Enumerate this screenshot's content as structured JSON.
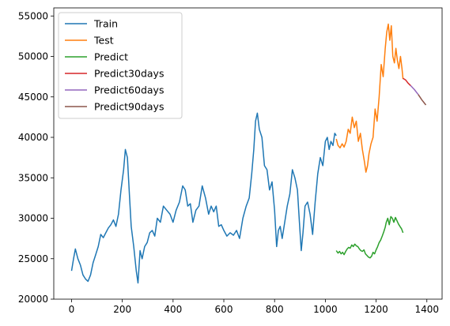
{
  "chart_data": {
    "type": "line",
    "title": "",
    "xlabel": "",
    "ylabel": "",
    "xlim": [
      -70,
      1460
    ],
    "ylim": [
      20000,
      56000
    ],
    "x_ticks": [
      0,
      200,
      400,
      600,
      800,
      1000,
      1200,
      1400
    ],
    "y_ticks": [
      20000,
      25000,
      30000,
      35000,
      40000,
      45000,
      50000,
      55000
    ],
    "grid": false,
    "legend_position": "top-left",
    "series": [
      {
        "name": "Train",
        "color": "#1f77b4",
        "x": [
          0,
          8,
          15,
          25,
          35,
          45,
          55,
          65,
          75,
          85,
          95,
          105,
          115,
          125,
          135,
          145,
          155,
          165,
          175,
          185,
          195,
          205,
          212,
          220,
          228,
          235,
          245,
          255,
          262,
          270,
          278,
          288,
          298,
          308,
          318,
          328,
          338,
          350,
          362,
          375,
          388,
          400,
          412,
          425,
          438,
          448,
          458,
          468,
          478,
          490,
          502,
          515,
          528,
          540,
          550,
          560,
          570,
          580,
          590,
          600,
          612,
          625,
          638,
          650,
          662,
          675,
          688,
          700,
          710,
          718,
          725,
          732,
          740,
          750,
          760,
          770,
          780,
          790,
          800,
          808,
          815,
          822,
          830,
          840,
          850,
          860,
          870,
          880,
          890,
          898,
          905,
          912,
          920,
          930,
          940,
          950,
          960,
          970,
          980,
          990,
          1000,
          1008,
          1015,
          1022,
          1030,
          1037,
          1043
        ],
        "y": [
          23500,
          25000,
          26200,
          25000,
          24200,
          23000,
          22500,
          22200,
          23000,
          24500,
          25500,
          26500,
          28000,
          27600,
          28200,
          28800,
          29200,
          29800,
          29000,
          30500,
          33500,
          36000,
          38500,
          37500,
          33000,
          29000,
          26500,
          23500,
          22000,
          26000,
          25000,
          26500,
          27000,
          28200,
          28500,
          27800,
          30000,
          29500,
          31500,
          31000,
          30500,
          29500,
          31000,
          32000,
          34000,
          33500,
          31500,
          31800,
          29500,
          31000,
          31500,
          34000,
          32500,
          30500,
          31500,
          30800,
          31500,
          29000,
          29200,
          28500,
          27800,
          28200,
          27900,
          28500,
          27500,
          30000,
          31500,
          32500,
          35500,
          38500,
          42000,
          43000,
          41000,
          40000,
          36500,
          36000,
          33500,
          34500,
          31000,
          26500,
          28500,
          29000,
          27500,
          29500,
          31500,
          33000,
          36000,
          35000,
          33500,
          29500,
          26000,
          28200,
          31500,
          32000,
          30500,
          28000,
          32000,
          35500,
          37500,
          36500,
          39500,
          40000,
          38500,
          39500,
          39000,
          40500,
          40200
        ]
      },
      {
        "name": "Test",
        "color": "#ff7f0e",
        "x": [
          1043,
          1050,
          1058,
          1066,
          1074,
          1082,
          1090,
          1098,
          1106,
          1114,
          1122,
          1130,
          1138,
          1146,
          1154,
          1160,
          1166,
          1172,
          1180,
          1188,
          1196,
          1204,
          1212,
          1220,
          1228,
          1236,
          1242,
          1248,
          1254,
          1260,
          1266,
          1272,
          1278,
          1284,
          1290,
          1296,
          1302,
          1306
        ],
        "y": [
          39800,
          39000,
          38700,
          39200,
          38800,
          39500,
          41000,
          40500,
          42500,
          41200,
          42000,
          39500,
          40500,
          38500,
          37000,
          35700,
          36500,
          38000,
          39200,
          40000,
          43500,
          42000,
          45000,
          49000,
          47500,
          51000,
          53000,
          54000,
          52000,
          53800,
          50000,
          49200,
          51000,
          49500,
          48500,
          50000,
          48500,
          47200
        ]
      },
      {
        "name": "Predict",
        "color": "#2ca02c",
        "x": [
          1043,
          1050,
          1056,
          1062,
          1068,
          1074,
          1080,
          1086,
          1092,
          1098,
          1104,
          1110,
          1116,
          1122,
          1128,
          1134,
          1140,
          1146,
          1152,
          1158,
          1164,
          1170,
          1176,
          1182,
          1188,
          1194,
          1200,
          1206,
          1212,
          1218,
          1224,
          1230,
          1236,
          1240,
          1246,
          1252,
          1258,
          1264,
          1270,
          1276,
          1282,
          1288,
          1294,
          1300,
          1306
        ],
        "y": [
          26000,
          25700,
          25900,
          25600,
          25800,
          25500,
          25900,
          26200,
          26400,
          26300,
          26700,
          26500,
          26800,
          26600,
          26500,
          26200,
          26000,
          25900,
          26100,
          25600,
          25400,
          25200,
          25100,
          25300,
          25800,
          25600,
          26100,
          26500,
          27000,
          27300,
          27800,
          28300,
          28900,
          29500,
          30000,
          29200,
          30200,
          30000,
          29500,
          30100,
          29700,
          29300,
          29000,
          28700,
          28200
        ]
      },
      {
        "name": "Predict30days",
        "color": "#d62728",
        "x": [
          1306,
          1316,
          1326,
          1336
        ],
        "y": [
          47300,
          47100,
          46700,
          46400
        ]
      },
      {
        "name": "Predict60days",
        "color": "#9467bd",
        "x": [
          1336,
          1351,
          1366
        ],
        "y": [
          46400,
          45900,
          45300
        ]
      },
      {
        "name": "Predict90days",
        "color": "#8c564b",
        "x": [
          1366,
          1381,
          1396
        ],
        "y": [
          45300,
          44600,
          44000
        ]
      }
    ]
  }
}
